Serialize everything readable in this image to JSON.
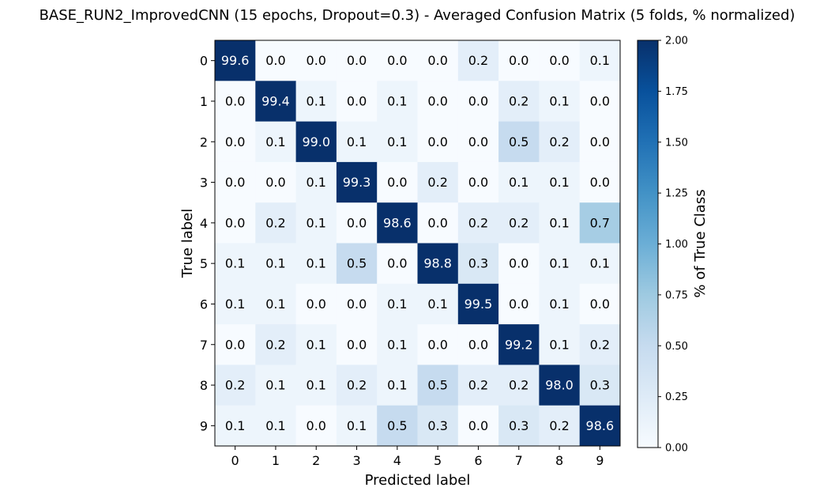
{
  "chart_data": {
    "type": "heatmap",
    "title": "BASE_RUN2_ImprovedCNN (15 epochs, Dropout=0.3) - Averaged Confusion Matrix (5 folds, % normalized)",
    "xlabel": "Predicted label",
    "ylabel": "True label",
    "x_categories": [
      "0",
      "1",
      "2",
      "3",
      "4",
      "5",
      "6",
      "7",
      "8",
      "9"
    ],
    "y_categories": [
      "0",
      "1",
      "2",
      "3",
      "4",
      "5",
      "6",
      "7",
      "8",
      "9"
    ],
    "values": [
      [
        99.6,
        0.0,
        0.0,
        0.0,
        0.0,
        0.0,
        0.2,
        0.0,
        0.0,
        0.1
      ],
      [
        0.0,
        99.4,
        0.1,
        0.0,
        0.1,
        0.0,
        0.0,
        0.2,
        0.1,
        0.0
      ],
      [
        0.0,
        0.1,
        99.0,
        0.1,
        0.1,
        0.0,
        0.0,
        0.5,
        0.2,
        0.0
      ],
      [
        0.0,
        0.0,
        0.1,
        99.3,
        0.0,
        0.2,
        0.0,
        0.1,
        0.1,
        0.0
      ],
      [
        0.0,
        0.2,
        0.1,
        0.0,
        98.6,
        0.0,
        0.2,
        0.2,
        0.1,
        0.7
      ],
      [
        0.1,
        0.1,
        0.1,
        0.5,
        0.0,
        98.8,
        0.3,
        0.0,
        0.1,
        0.1
      ],
      [
        0.1,
        0.1,
        0.0,
        0.0,
        0.1,
        0.1,
        99.5,
        0.0,
        0.1,
        0.0
      ],
      [
        0.0,
        0.2,
        0.1,
        0.0,
        0.1,
        0.0,
        0.0,
        99.2,
        0.1,
        0.2
      ],
      [
        0.2,
        0.1,
        0.1,
        0.2,
        0.1,
        0.5,
        0.2,
        0.2,
        98.0,
        0.3
      ],
      [
        0.1,
        0.1,
        0.0,
        0.1,
        0.5,
        0.3,
        0.0,
        0.3,
        0.2,
        98.6
      ]
    ],
    "colorbar": {
      "label": "% of True Class",
      "range": [
        0,
        2.0
      ],
      "ticks": [
        "0.00",
        "0.25",
        "0.50",
        "0.75",
        "1.00",
        "1.25",
        "1.50",
        "1.75",
        "2.00"
      ],
      "colormap": "Blues"
    }
  }
}
